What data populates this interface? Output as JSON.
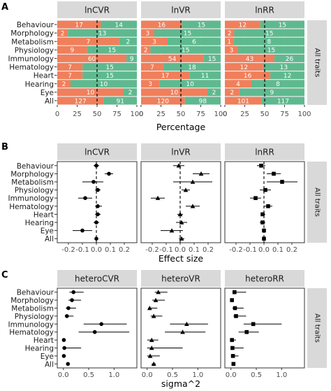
{
  "chart_data": [
    {
      "panel": "A",
      "type": "bar",
      "orientation": "horizontal",
      "stacked": true,
      "facets": [
        "lnCVR",
        "lnVR",
        "lnRR"
      ],
      "row_strip": "All traits",
      "categories": [
        "Behaviour",
        "Morphology",
        "Metabolism",
        "Physiology",
        "Immunology",
        "Hematology",
        "Heart",
        "Hearing",
        "Eye",
        "All"
      ],
      "xlabel": "Percentage",
      "xlim": [
        0,
        100
      ],
      "xticks": [
        0,
        25,
        50,
        75,
        100
      ],
      "reference_line": 50,
      "colors": {
        "left": "#F07F5B",
        "right": "#5FB98F"
      },
      "series_by_facet": [
        {
          "facet": "lnCVR",
          "left": [
            17,
            2,
            7,
            9,
            60,
            7,
            7,
            2,
            10,
            127
          ],
          "right": [
            14,
            13,
            2,
            15,
            9,
            15,
            15,
            10,
            2,
            91
          ]
        },
        {
          "facet": "lnVR",
          "left": [
            16,
            3,
            3,
            2,
            54,
            7,
            17,
            3,
            10,
            120
          ],
          "right": [
            15,
            15,
            6,
            15,
            15,
            18,
            11,
            10,
            2,
            98
          ]
        },
        {
          "facet": "lnRR",
          "left": [
            12,
            2,
            1,
            3,
            43,
            12,
            16,
            4,
            2,
            101
          ],
          "right": [
            15,
            15,
            8,
            15,
            26,
            13,
            12,
            8,
            9,
            117
          ]
        }
      ]
    },
    {
      "panel": "B",
      "type": "scatter",
      "subtype": "forest",
      "facets": [
        "lnCVR",
        "lnVR",
        "lnRR"
      ],
      "row_strip": "All traits",
      "categories": [
        "Behaviour",
        "Morphology",
        "Metabolism",
        "Physiology",
        "Immunology",
        "Hematology",
        "Heart",
        "Hearing",
        "Eye",
        "All"
      ],
      "xlabel": "Effect size",
      "xlim": [
        -0.28,
        0.29
      ],
      "xticks": [
        -0.2,
        -0.1,
        0.0,
        0.1,
        0.2
      ],
      "xtick_labels": [
        "-0.2",
        "-0.1",
        "0.0",
        "0.1",
        "0.2"
      ],
      "reference_line": 0,
      "markers": [
        "circle",
        "triangle",
        "square"
      ],
      "series_by_facet": [
        {
          "facet": "lnCVR",
          "est": [
            0.0,
            0.09,
            -0.02,
            0.01,
            -0.08,
            0.01,
            0.01,
            0.0,
            -0.1,
            0.0
          ],
          "low": [
            -0.02,
            0.06,
            -0.1,
            -0.01,
            -0.13,
            -0.01,
            -0.01,
            -0.02,
            -0.17,
            -0.01
          ],
          "high": [
            0.02,
            0.12,
            0.05,
            0.03,
            -0.03,
            0.04,
            0.03,
            0.02,
            -0.03,
            0.01
          ]
        },
        {
          "facet": "lnVR",
          "est": [
            -0.01,
            0.15,
            0.09,
            0.04,
            -0.16,
            0.09,
            0.0,
            0.01,
            -0.06,
            0.01
          ],
          "low": [
            -0.05,
            0.09,
            -0.05,
            0.01,
            -0.21,
            0.04,
            -0.02,
            -0.03,
            -0.14,
            -0.01
          ],
          "high": [
            0.03,
            0.21,
            0.23,
            0.07,
            -0.11,
            0.14,
            0.02,
            0.05,
            0.02,
            0.03
          ]
        },
        {
          "facet": "lnRR",
          "est": [
            -0.02,
            0.07,
            0.13,
            0.01,
            -0.06,
            0.03,
            -0.01,
            -0.01,
            0.0,
            0.0
          ],
          "low": [
            -0.05,
            0.02,
            0.02,
            -0.03,
            -0.1,
            0.0,
            -0.02,
            -0.03,
            -0.01,
            -0.01
          ],
          "high": [
            0.01,
            0.12,
            0.24,
            0.05,
            -0.02,
            0.06,
            0.01,
            0.01,
            0.01,
            0.01
          ]
        }
      ]
    },
    {
      "panel": "C",
      "type": "scatter",
      "subtype": "forest",
      "facets": [
        "heteroCVR",
        "heteroVR",
        "heteroRR"
      ],
      "row_strip": "All traits",
      "categories": [
        "Behaviour",
        "Morphology",
        "Metabolism",
        "Physiology",
        "Immunology",
        "Hematology",
        "Heart",
        "Hearing",
        "Eye",
        "All"
      ],
      "xlabel": "sigma^2",
      "xlim": [
        -0.12,
        1.45
      ],
      "xticks": [
        0.0,
        0.5,
        1.0
      ],
      "xtick_labels": [
        "0.0",
        "0.5",
        "1.0"
      ],
      "markers": [
        "circle",
        "triangle",
        "square"
      ],
      "series_by_facet": [
        {
          "facet": "heteroCVR",
          "est": [
            0.2,
            0.17,
            0.1,
            0.07,
            0.75,
            0.62,
            0.01,
            0.02,
            0.01,
            0.09
          ],
          "low": [
            0.12,
            0.1,
            0.05,
            0.03,
            0.4,
            0.3,
            0.0,
            0.0,
            0.0,
            0.06
          ],
          "high": [
            0.4,
            0.35,
            0.25,
            0.2,
            1.25,
            1.3,
            0.03,
            0.35,
            0.05,
            0.12
          ]
        },
        {
          "facet": "heteroVR",
          "est": [
            0.22,
            0.17,
            0.05,
            0.13,
            0.78,
            0.7,
            0.09,
            0.09,
            0.06,
            0.13
          ],
          "low": [
            0.15,
            0.1,
            0.02,
            0.07,
            0.45,
            0.35,
            0.0,
            0.0,
            0.0,
            0.09
          ],
          "high": [
            0.4,
            0.35,
            0.2,
            0.3,
            1.2,
            1.15,
            0.22,
            0.7,
            0.25,
            0.17
          ]
        },
        {
          "facet": "heteroRR",
          "est": [
            0.07,
            0.02,
            0.08,
            0.1,
            0.44,
            0.31,
            0.02,
            0.03,
            0.04,
            0.05
          ],
          "low": [
            0.03,
            0.0,
            0.03,
            0.05,
            0.25,
            0.15,
            0.0,
            0.0,
            0.0,
            0.03
          ],
          "high": [
            0.3,
            0.05,
            0.25,
            0.3,
            1.0,
            0.55,
            0.1,
            0.25,
            0.15,
            0.08
          ]
        }
      ]
    }
  ]
}
